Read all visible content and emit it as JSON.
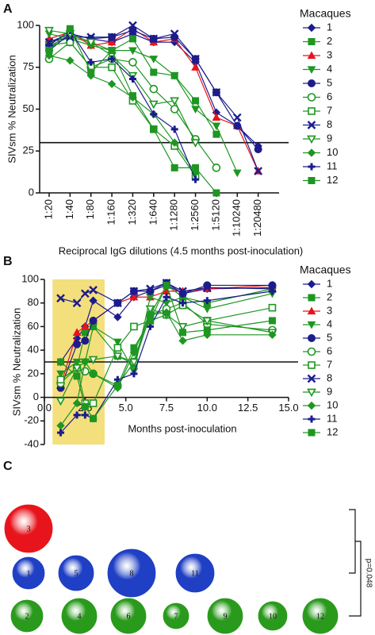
{
  "chart_data": [
    {
      "type": "line",
      "panel": "A",
      "ylabel": "SIVsm % Neutralization",
      "xlabel": "Reciprocal IgG dilutions (4.5 months post-inoculation)",
      "legend_title": "Macaques",
      "categories": [
        "1:20",
        "1:40",
        "1:80",
        "1:160",
        "1:320",
        "1:640",
        "1:1280",
        "1:2560",
        "1:5120",
        "1:10240",
        "1:20480"
      ],
      "ylim": [
        0,
        100
      ],
      "yticks": [
        0,
        25,
        50,
        75,
        100
      ],
      "hline": 30,
      "series": [
        {
          "name": "1",
          "color": "#1c1c8c",
          "marker": "diamond",
          "values": [
            90,
            95,
            92,
            90,
            95,
            90,
            90,
            78,
            48,
            40,
            28
          ]
        },
        {
          "name": "2",
          "color": "#1e9622",
          "marker": "square",
          "values": [
            88,
            93,
            90,
            85,
            92,
            72,
            70,
            55,
            35,
            null,
            null
          ]
        },
        {
          "name": "3",
          "color": "#e8141c",
          "marker": "triangle",
          "values": [
            92,
            96,
            88,
            90,
            98,
            90,
            92,
            75,
            45,
            40,
            13
          ]
        },
        {
          "name": "4",
          "color": "#1e9622",
          "marker": "triangle-down",
          "values": [
            95,
            92,
            88,
            85,
            85,
            80,
            70,
            50,
            40,
            12,
            null
          ]
        },
        {
          "name": "5",
          "color": "#1c1c8c",
          "marker": "circle",
          "values": [
            85,
            95,
            92,
            93,
            97,
            92,
            93,
            80,
            60,
            40,
            26
          ]
        },
        {
          "name": "6",
          "color": "#1e9622",
          "marker": "circle-open",
          "values": [
            80,
            90,
            75,
            80,
            78,
            62,
            50,
            32,
            15,
            null,
            null
          ]
        },
        {
          "name": "7",
          "color": "#1e9622",
          "marker": "square-open",
          "values": [
            88,
            90,
            75,
            75,
            55,
            38,
            28,
            10,
            null,
            null,
            null
          ]
        },
        {
          "name": "8",
          "color": "#1c1c8c",
          "marker": "x",
          "values": [
            90,
            93,
            93,
            93,
            100,
            92,
            95,
            80,
            60,
            45,
            13
          ]
        },
        {
          "name": "9",
          "color": "#1e9622",
          "marker": "triangle-down-open",
          "values": [
            97,
            95,
            90,
            82,
            70,
            53,
            55,
            30,
            null,
            null,
            null
          ]
        },
        {
          "name": "10",
          "color": "#1e9622",
          "marker": "diamond",
          "values": [
            82,
            79,
            70,
            65,
            57,
            47,
            30,
            12,
            null,
            null,
            null
          ]
        },
        {
          "name": "11",
          "color": "#1c1c8c",
          "marker": "plus",
          "values": [
            88,
            97,
            78,
            80,
            68,
            47,
            38,
            8,
            null,
            null,
            null
          ]
        },
        {
          "name": "12",
          "color": "#1e9622",
          "marker": "square",
          "values": [
            85,
            98,
            72,
            85,
            58,
            38,
            15,
            15,
            0,
            null,
            null
          ]
        }
      ]
    },
    {
      "type": "line",
      "panel": "B",
      "ylabel": "SIVsm % Neutralization",
      "xlabel": "Months post-inoculation",
      "legend_title": "Macaques",
      "x": [
        1,
        2,
        2.5,
        3,
        4.5,
        5.5,
        6.5,
        7.5,
        8.5,
        10,
        14
      ],
      "xlim": [
        0,
        15
      ],
      "xticks": [
        {
          "value": 0,
          "label": "0.0"
        },
        {
          "value": 2.5,
          "label": "2.5"
        },
        {
          "value": 5,
          "label": "5.0"
        },
        {
          "value": 7.5,
          "label": "7.5"
        },
        {
          "value": 10,
          "label": "10.0"
        },
        {
          "value": 12.5,
          "label": "12.5"
        },
        {
          "value": 15,
          "label": "15.0"
        }
      ],
      "ylim": [
        -40,
        100
      ],
      "yticks": [
        -40,
        -20,
        0,
        20,
        40,
        60,
        80,
        100
      ],
      "hline": 30,
      "highlight_x": [
        0.5,
        3.7
      ],
      "highlight_color": "#f3df7c",
      "series": [
        {
          "name": "1",
          "color": "#1c1c8c",
          "marker": "diamond",
          "values": [
            30,
            50,
            60,
            82,
            68,
            85,
            90,
            95,
            88,
            92,
            93
          ]
        },
        {
          "name": "2",
          "color": "#1e9622",
          "marker": "square",
          "values": [
            15,
            25,
            55,
            60,
            35,
            28,
            70,
            95,
            85,
            80,
            92
          ]
        },
        {
          "name": "3",
          "color": "#e8141c",
          "marker": "triangle",
          "values": [
            10,
            55,
            60,
            65,
            80,
            85,
            85,
            90,
            90,
            92,
            95
          ]
        },
        {
          "name": "4",
          "color": "#1e9622",
          "marker": "triangle-down",
          "values": [
            20,
            30,
            30,
            60,
            47,
            22,
            85,
            80,
            85,
            75,
            88
          ]
        },
        {
          "name": "5",
          "color": "#1c1c8c",
          "marker": "circle",
          "values": [
            8,
            45,
            48,
            65,
            80,
            90,
            90,
            97,
            88,
            95,
            95
          ]
        },
        {
          "name": "6",
          "color": "#1e9622",
          "marker": "circle-open",
          "values": [
            12,
            25,
            22,
            20,
            10,
            30,
            70,
            75,
            80,
            62,
            57
          ]
        },
        {
          "name": "7",
          "color": "#1e9622",
          "marker": "square-open",
          "values": [
            15,
            25,
            -5,
            -5,
            42,
            60,
            65,
            70,
            78,
            65,
            76
          ]
        },
        {
          "name": "8",
          "color": "#1c1c8c",
          "marker": "x",
          "values": [
            84,
            80,
            88,
            91,
            80,
            90,
            92,
            97,
            90,
            93,
            92
          ]
        },
        {
          "name": "9",
          "color": "#1e9622",
          "marker": "triangle-down-open",
          "values": [
            -3,
            25,
            30,
            32,
            35,
            30,
            75,
            70,
            60,
            65,
            55
          ]
        },
        {
          "name": "10",
          "color": "#1e9622",
          "marker": "diamond",
          "values": [
            -24,
            -5,
            30,
            20,
            8,
            38,
            70,
            72,
            48,
            53,
            53
          ]
        },
        {
          "name": "11",
          "color": "#1c1c8c",
          "marker": "plus",
          "values": [
            -30,
            -15,
            -15,
            -18,
            15,
            20,
            60,
            85,
            80,
            82,
            90
          ]
        },
        {
          "name": "12",
          "color": "#1e9622",
          "marker": "square",
          "values": [
            30,
            18,
            -8,
            -18,
            10,
            42,
            65,
            95,
            55,
            57,
            65
          ]
        }
      ]
    },
    {
      "type": "bubble",
      "panel": "C",
      "annotation": "p=0.048",
      "rows": [
        {
          "color": "#e8141c",
          "labels": [
            "3"
          ],
          "sizes": [
            30
          ]
        },
        {
          "color": "#1f3fc4",
          "labels": [
            "1",
            "5",
            "8",
            "11"
          ],
          "sizes": [
            20,
            22,
            30,
            24
          ]
        },
        {
          "color": "#2a9a1c",
          "labels": [
            "2",
            "4",
            "6",
            "7",
            "9",
            "10",
            "12"
          ],
          "sizes": [
            20,
            22,
            22,
            16,
            22,
            18,
            22
          ]
        }
      ]
    }
  ]
}
